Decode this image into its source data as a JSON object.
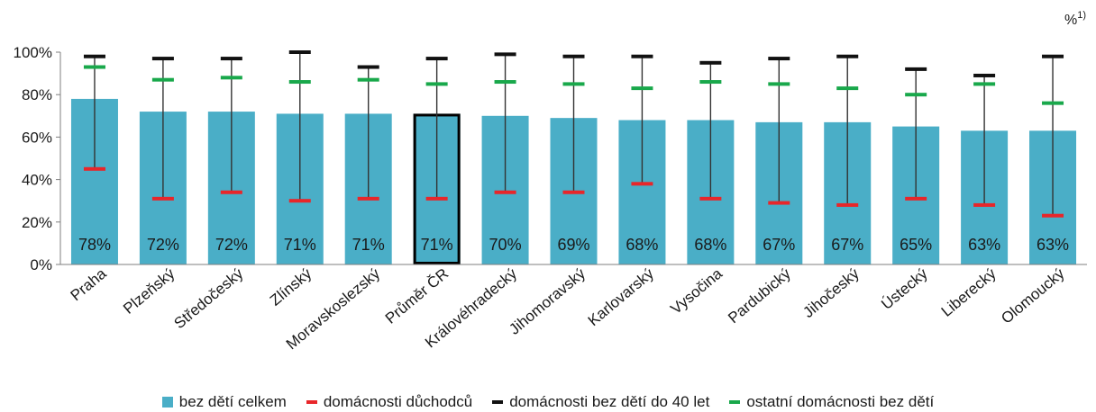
{
  "colors": {
    "bar": "#4aaec7",
    "pensioners": "#e8262a",
    "under40": "#111111",
    "other": "#19a84b",
    "axis": "#7f7f7f",
    "highlight_border": "#000000"
  },
  "unit_label": {
    "main": "%",
    "sup": "1)"
  },
  "legend": {
    "items": [
      {
        "label": "bez dětí celkem",
        "color": "#4aaec7",
        "shape": "square"
      },
      {
        "label": "domácnosti důchodců",
        "color": "#e8262a",
        "shape": "dash"
      },
      {
        "label": "domácnosti bez dětí do 40 let",
        "color": "#111111",
        "shape": "dash"
      },
      {
        "label": "ostatní domácnosti bez dětí",
        "color": "#19a84b",
        "shape": "dash"
      }
    ]
  },
  "chart_data": {
    "type": "bar",
    "title": "",
    "xlabel": "",
    "ylabel": "",
    "ylim": [
      0,
      100
    ],
    "yticks": [
      "0%",
      "20%",
      "40%",
      "60%",
      "80%",
      "100%"
    ],
    "grid": false,
    "legend_position": "bottom",
    "highlighted_category": "Průměr ČR",
    "categories": [
      "Praha",
      "Plzeňský",
      "Středočeský",
      "Zlínský",
      "Moravskoslezský",
      "Průměr ČR",
      "Královéhradecký",
      "Jihomoravský",
      "Karlovarský",
      "Vysočina",
      "Pardubický",
      "Jihočeský",
      "Ústecký",
      "Liberecký",
      "Olomoucký"
    ],
    "data_labels": [
      "78%",
      "72%",
      "72%",
      "71%",
      "71%",
      "71%",
      "70%",
      "69%",
      "68%",
      "68%",
      "67%",
      "67%",
      "65%",
      "63%",
      "63%"
    ],
    "series": [
      {
        "name": "bez dětí celkem",
        "kind": "bar",
        "values": [
          78,
          72,
          72,
          71,
          71,
          71,
          70,
          69,
          68,
          68,
          67,
          67,
          65,
          63,
          63
        ]
      },
      {
        "name": "domácnosti důchodců",
        "kind": "marker",
        "values": [
          45,
          31,
          34,
          30,
          31,
          31,
          34,
          34,
          38,
          31,
          29,
          28,
          31,
          28,
          23
        ]
      },
      {
        "name": "domácnosti bez dětí do 40 let",
        "kind": "marker",
        "values": [
          98,
          97,
          97,
          100,
          93,
          97,
          99,
          98,
          98,
          95,
          97,
          98,
          92,
          89,
          98
        ]
      },
      {
        "name": "ostatní domácnosti bez dětí",
        "kind": "marker",
        "values": [
          93,
          87,
          88,
          86,
          87,
          85,
          86,
          85,
          83,
          86,
          85,
          83,
          80,
          85,
          76
        ]
      }
    ]
  }
}
